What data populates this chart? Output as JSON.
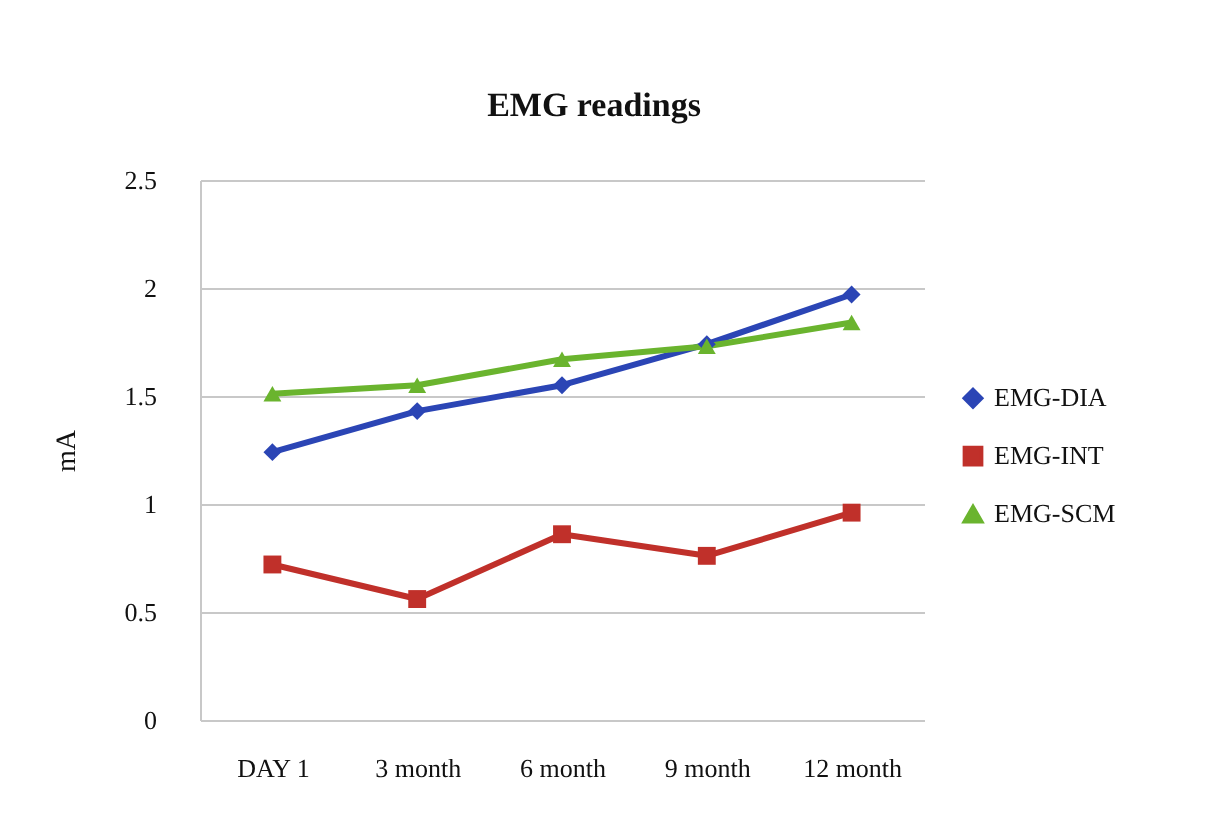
{
  "chart_data": {
    "type": "line",
    "title": "EMG readings",
    "ylabel": "mA",
    "categories": [
      "DAY 1",
      "3 month",
      "6 month",
      "9 month",
      "12 month"
    ],
    "series": [
      {
        "name": "EMG-DIA",
        "color": "#2b45b5",
        "marker": "diamond",
        "values": [
          1.24,
          1.43,
          1.55,
          1.74,
          1.97
        ]
      },
      {
        "name": "EMG-INT",
        "color": "#c0302a",
        "marker": "square",
        "values": [
          0.72,
          0.56,
          0.86,
          0.76,
          0.96
        ]
      },
      {
        "name": "EMG-SCM",
        "color": "#6ab42e",
        "marker": "triangle",
        "values": [
          1.51,
          1.55,
          1.67,
          1.73,
          1.84
        ]
      }
    ],
    "ylim": [
      0,
      2.5
    ],
    "yticks": [
      0,
      0.5,
      1,
      1.5,
      2,
      2.5
    ],
    "grid": "y",
    "legend": "right",
    "line_style": "solid"
  }
}
